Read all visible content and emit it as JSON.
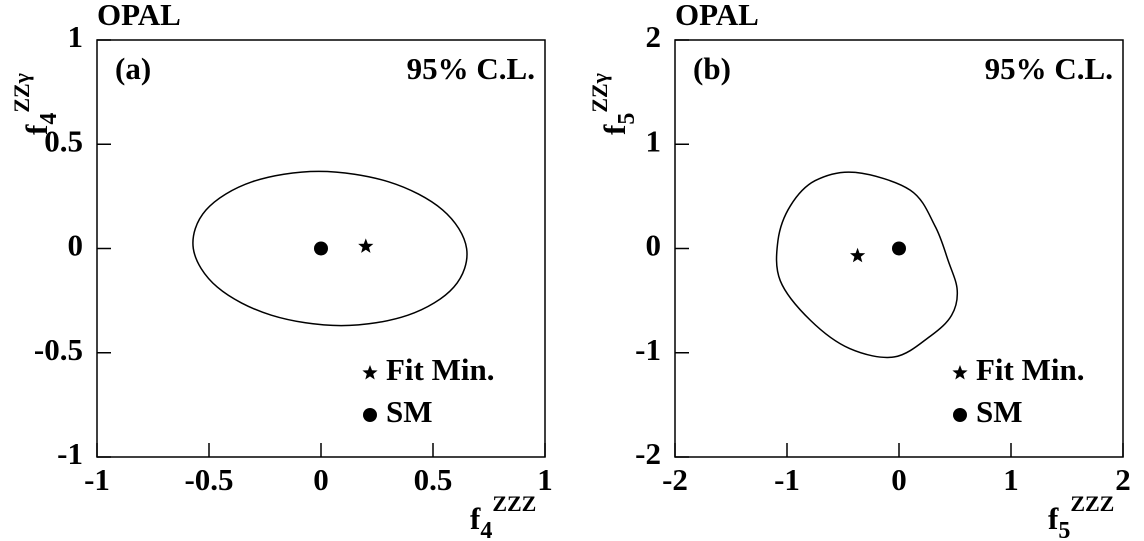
{
  "chart_data": [
    {
      "type": "contour",
      "experiment": "OPAL",
      "panel_label": "(a)",
      "cl_label": "95% C.L.",
      "x_label": {
        "base": "f",
        "sub": "4",
        "sup": "ZZZ"
      },
      "y_label": {
        "base": "f",
        "sub": "4",
        "sup": "ZZγ"
      },
      "xlim": [
        -1,
        1
      ],
      "ylim": [
        -1,
        1
      ],
      "xticks": [
        -1,
        -0.5,
        0,
        0.5,
        1
      ],
      "yticks": [
        -1,
        -0.5,
        0,
        0.5,
        1
      ],
      "contour": {
        "color": "#000000",
        "x": [
          0.65,
          0.543,
          0.302,
          -0.01,
          -0.308,
          -0.513,
          -0.57,
          -0.463,
          -0.222,
          0.09,
          0.388,
          0.593,
          0.65
        ],
        "y": [
          0,
          0.185,
          0.32,
          0.37,
          0.32,
          0.185,
          0,
          -0.185,
          -0.32,
          -0.37,
          -0.32,
          -0.185,
          0
        ]
      },
      "series": [
        {
          "name": "Fit Min.",
          "marker": "star",
          "color": "#000000",
          "x": [
            0.2
          ],
          "y": [
            0.01
          ]
        },
        {
          "name": "SM",
          "marker": "circle",
          "color": "#000000",
          "x": [
            0
          ],
          "y": [
            0
          ]
        }
      ]
    },
    {
      "type": "contour",
      "experiment": "OPAL",
      "panel_label": "(b)",
      "cl_label": "95% C.L.",
      "x_label": {
        "base": "f",
        "sub": "5",
        "sup": "ZZZ"
      },
      "y_label": {
        "base": "f",
        "sub": "5",
        "sup": "ZZγ"
      },
      "xlim": [
        -2,
        2
      ],
      "ylim": [
        -2,
        2
      ],
      "xticks": [
        -2,
        -1,
        0,
        1,
        2
      ],
      "yticks": [
        -2,
        -1,
        0,
        1,
        2
      ],
      "contour": {
        "color": "#000000",
        "x": [
          -0.39,
          0.1,
          0.32,
          0.44,
          0.52,
          0.47,
          0.28,
          -0.04,
          -0.44,
          -0.79,
          -1.06,
          -1.08,
          -0.97,
          -0.75,
          -0.39
        ],
        "y": [
          0.73,
          0.56,
          0.22,
          -0.12,
          -0.4,
          -0.64,
          -0.84,
          -1.04,
          -0.96,
          -0.69,
          -0.31,
          0.08,
          0.41,
          0.65,
          0.73
        ]
      },
      "series": [
        {
          "name": "Fit Min.",
          "marker": "star",
          "color": "#000000",
          "x": [
            -0.37
          ],
          "y": [
            -0.07
          ]
        },
        {
          "name": "SM",
          "marker": "circle",
          "color": "#000000",
          "x": [
            0
          ],
          "y": [
            0
          ]
        }
      ]
    }
  ]
}
